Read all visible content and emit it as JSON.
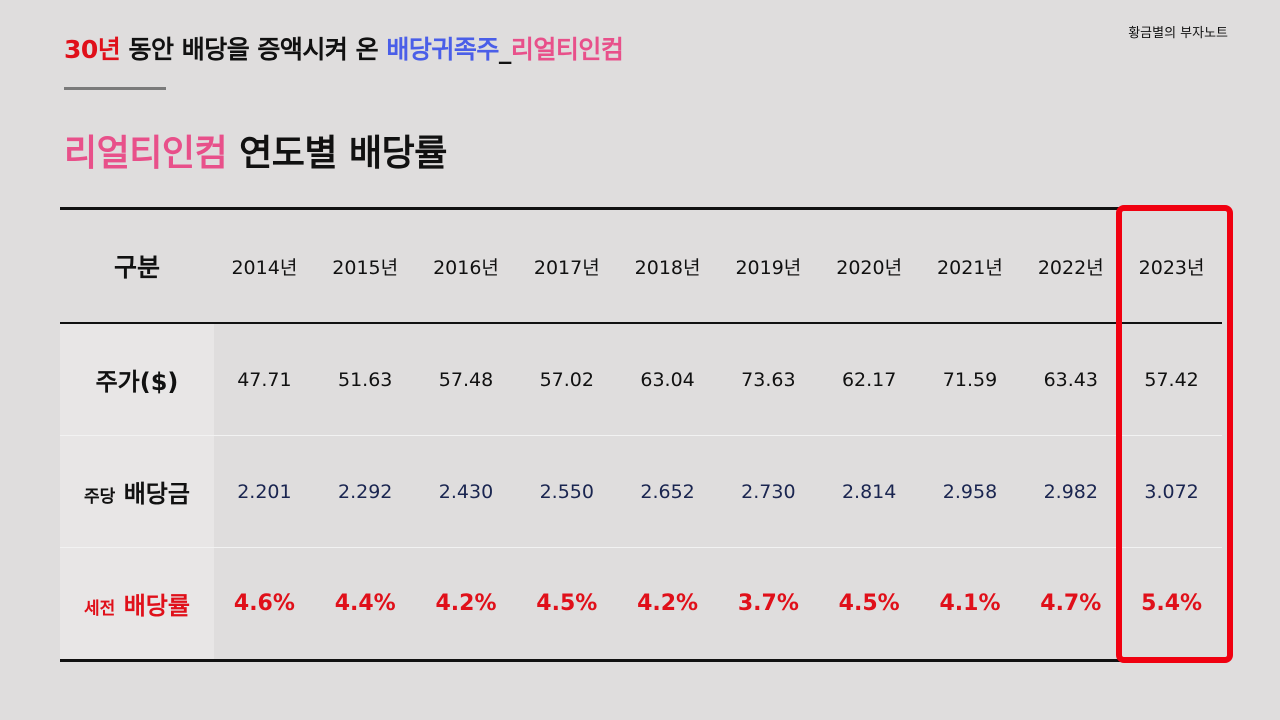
{
  "header": {
    "title_part1": "30년",
    "title_part2": " 동안 배당을 증액시켜 온 ",
    "title_part3": "배당귀족주",
    "title_part4": "_",
    "title_part5": "리얼티인컴",
    "brand": "황금별의 부자노트"
  },
  "main_title": {
    "company": "리얼티인컴",
    "rest": " 연도별 배당률"
  },
  "table": {
    "header_label": "구분",
    "years": [
      "2014년",
      "2015년",
      "2016년",
      "2017년",
      "2018년",
      "2019년",
      "2020년",
      "2021년",
      "2022년",
      "2023년"
    ],
    "price_label": "주가($)",
    "price": [
      "47.71",
      "51.63",
      "57.48",
      "57.02",
      "63.04",
      "73.63",
      "62.17",
      "71.59",
      "63.43",
      "57.42"
    ],
    "dividend_label_small": "주당",
    "dividend_label_big": "배당금",
    "dividend": [
      "2.201",
      "2.292",
      "2.430",
      "2.550",
      "2.652",
      "2.730",
      "2.814",
      "2.958",
      "2.982",
      "3.072"
    ],
    "yield_label_small": "세전",
    "yield_label_big": "배당률",
    "yield": [
      "4.6%",
      "4.4%",
      "4.2%",
      "4.5%",
      "4.2%",
      "3.7%",
      "4.5%",
      "4.1%",
      "4.7%",
      "5.4%"
    ]
  },
  "colors": {
    "accent_red": "#e0101a",
    "accent_blue": "#4a5ee8",
    "accent_pink": "#e8508a",
    "highlight_box": "#f00010"
  }
}
